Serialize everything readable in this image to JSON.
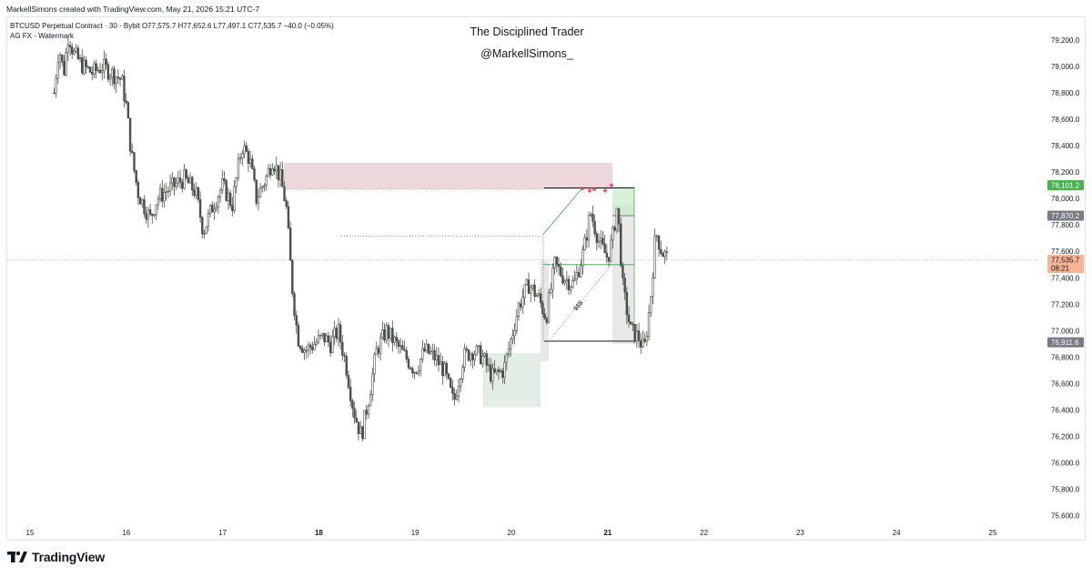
{
  "header": {
    "credit": "MarkellSimons created with TradingView.com, May 21, 2026 15:21 UTC-7",
    "symbol_line": "BTCUSD Perpetual Contract · 30 · Bybit  O77,575.7  H77,652.6  L77,497.1  C77,535.7  −40.0 (−0.05%)",
    "indicator_line": "AG FX - Watermark"
  },
  "watermark": {
    "title": "The Disciplined Trader",
    "handle": "@MarkellSimons_"
  },
  "footer": {
    "brand": "TradingView",
    "brand_icon": "tradingview-logo-icon"
  },
  "colors": {
    "candle": "#4a4f4a",
    "supply_zone": "#e8c9cf",
    "demand_zone": "#d5e6dc",
    "target_zone": "#c8e8c8",
    "green_line": "#4caf50",
    "red_marker": "#f23645",
    "current_price_label": "#f6b396",
    "level_label_green": "#4caf50",
    "level_label_gray": "#787b86"
  },
  "chart_data": {
    "type": "candlestick",
    "symbol": "BTCUSD Perpetual Contract",
    "timeframe": "30",
    "exchange": "Bybit",
    "ohlc_last": {
      "open": 77575.7,
      "high": 77652.6,
      "low": 77497.1,
      "close": 77535.7,
      "change": -40.0,
      "change_pct": -0.05
    },
    "ylim": [
      75500,
      79300
    ],
    "y_ticks": [
      {
        "value": 79200,
        "label": "79,200.0"
      },
      {
        "value": 79000,
        "label": "79,000.0"
      },
      {
        "value": 78800,
        "label": "78,800.0"
      },
      {
        "value": 78600,
        "label": "78,600.0"
      },
      {
        "value": 78400,
        "label": "78,400.0"
      },
      {
        "value": 78200,
        "label": "78,200.0"
      },
      {
        "value": 78000,
        "label": "78,000.0"
      },
      {
        "value": 77800,
        "label": "77,800.0"
      },
      {
        "value": 77600,
        "label": "77,600.0"
      },
      {
        "value": 77400,
        "label": "77,400.0"
      },
      {
        "value": 77200,
        "label": "77,200.0"
      },
      {
        "value": 77000,
        "label": "77,000.0"
      },
      {
        "value": 76800,
        "label": "76,800.0"
      },
      {
        "value": 76600,
        "label": "76,600.0"
      },
      {
        "value": 76400,
        "label": "76,400.0"
      },
      {
        "value": 76200,
        "label": "76,200.0"
      },
      {
        "value": 76000,
        "label": "76,000.0"
      },
      {
        "value": 75800,
        "label": "75,800.0"
      },
      {
        "value": 75600,
        "label": "75,600.0"
      }
    ],
    "x_ticks": [
      {
        "day": 15,
        "label": "15",
        "bold": false
      },
      {
        "day": 16,
        "label": "16",
        "bold": false
      },
      {
        "day": 17,
        "label": "17",
        "bold": false
      },
      {
        "day": 18,
        "label": "18",
        "bold": true
      },
      {
        "day": 19,
        "label": "19",
        "bold": false
      },
      {
        "day": 20,
        "label": "20",
        "bold": false
      },
      {
        "day": 21,
        "label": "21",
        "bold": true
      },
      {
        "day": 22,
        "label": "22",
        "bold": false
      },
      {
        "day": 23,
        "label": "23",
        "bold": false
      },
      {
        "day": 24,
        "label": "24",
        "bold": false
      },
      {
        "day": 25,
        "label": "25",
        "bold": false
      }
    ],
    "xlim": [
      14.9,
      25.4
    ],
    "price_labels": [
      {
        "value": 78101.2,
        "label": "78,101.2",
        "kind": "green"
      },
      {
        "value": 77870.2,
        "label": "77,870.2",
        "kind": "gray"
      },
      {
        "value": 77535.7,
        "label": "77,535.7",
        "sub": "08:21",
        "kind": "current"
      },
      {
        "value": 76911.6,
        "label": "76,911.6",
        "kind": "gray"
      }
    ],
    "price_path": [
      [
        15.25,
        78800
      ],
      [
        15.3,
        79150
      ],
      [
        15.35,
        78950
      ],
      [
        15.4,
        79250
      ],
      [
        15.45,
        79100
      ],
      [
        15.55,
        79000
      ],
      [
        15.65,
        78950
      ],
      [
        15.75,
        79000
      ],
      [
        15.85,
        78950
      ],
      [
        15.95,
        78900
      ],
      [
        16.0,
        78700
      ],
      [
        16.05,
        78350
      ],
      [
        16.12,
        78050
      ],
      [
        16.18,
        77950
      ],
      [
        16.25,
        77850
      ],
      [
        16.32,
        78000
      ],
      [
        16.4,
        78050
      ],
      [
        16.5,
        78100
      ],
      [
        16.6,
        78150
      ],
      [
        16.72,
        78050
      ],
      [
        16.8,
        77750
      ],
      [
        16.9,
        77950
      ],
      [
        17.0,
        78100
      ],
      [
        17.1,
        77950
      ],
      [
        17.2,
        78400
      ],
      [
        17.28,
        78300
      ],
      [
        17.35,
        78000
      ],
      [
        17.45,
        78150
      ],
      [
        17.52,
        78300
      ],
      [
        17.6,
        78150
      ],
      [
        17.66,
        77950
      ],
      [
        17.72,
        77350
      ],
      [
        17.78,
        76950
      ],
      [
        17.86,
        76850
      ],
      [
        17.95,
        76900
      ],
      [
        18.05,
        76950
      ],
      [
        18.12,
        76900
      ],
      [
        18.2,
        77000
      ],
      [
        18.28,
        76750
      ],
      [
        18.36,
        76400
      ],
      [
        18.44,
        76200
      ],
      [
        18.52,
        76500
      ],
      [
        18.6,
        76850
      ],
      [
        18.7,
        77000
      ],
      [
        18.8,
        76900
      ],
      [
        18.9,
        76800
      ],
      [
        19.0,
        76700
      ],
      [
        19.1,
        76850
      ],
      [
        19.2,
        76800
      ],
      [
        19.3,
        76700
      ],
      [
        19.4,
        76450
      ],
      [
        19.5,
        76800
      ],
      [
        19.6,
        76850
      ],
      [
        19.7,
        76800
      ],
      [
        19.8,
        76650
      ],
      [
        19.92,
        76700
      ],
      [
        20.0,
        76950
      ],
      [
        20.08,
        77200
      ],
      [
        20.18,
        77350
      ],
      [
        20.28,
        77250
      ],
      [
        20.36,
        77100
      ],
      [
        20.45,
        77500
      ],
      [
        20.55,
        77400
      ],
      [
        20.65,
        77350
      ],
      [
        20.75,
        77600
      ],
      [
        20.82,
        77900
      ],
      [
        20.88,
        77750
      ],
      [
        20.92,
        77650
      ],
      [
        21.0,
        77550
      ],
      [
        21.05,
        77700
      ],
      [
        21.1,
        77950
      ],
      [
        21.16,
        77300
      ],
      [
        21.24,
        77000
      ],
      [
        21.32,
        76950
      ],
      [
        21.38,
        76850
      ],
      [
        21.44,
        77200
      ],
      [
        21.5,
        77750
      ],
      [
        21.56,
        77600
      ],
      [
        21.62,
        77550
      ]
    ]
  }
}
